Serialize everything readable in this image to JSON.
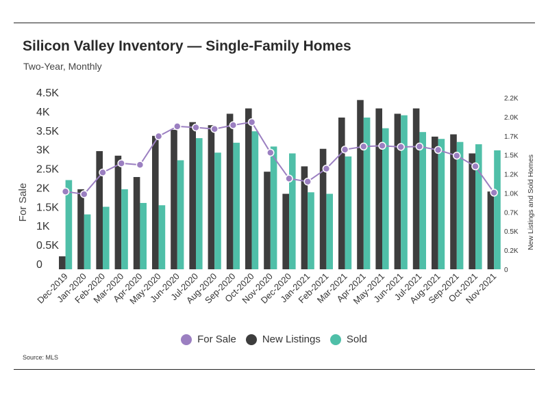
{
  "header": {
    "title": "Silicon Valley Inventory — Single-Family Homes",
    "subtitle": "Two-Year, Monthly"
  },
  "footer": {
    "source": "Source: MLS"
  },
  "colors": {
    "for_sale": "#9b7fc1",
    "new_listings": "#3d3d3d",
    "sold": "#4fbfa8"
  },
  "chart_data": {
    "type": "bar",
    "x": [
      "Dec-2019",
      "Jan-2020",
      "Feb-2020",
      "Mar-2020",
      "Apr-2020",
      "May-2020",
      "Jun-2020",
      "Jul-2020",
      "Aug-2020",
      "Sep-2020",
      "Oct-2020",
      "Nov-2020",
      "Dec-2020",
      "Jan-2021",
      "Feb-2021",
      "Mar-2021",
      "Apr-2021",
      "May-2021",
      "Jun-2021",
      "Jul-2021",
      "Aug-2021",
      "Sep-2021",
      "Oct-2021",
      "Nov-2021"
    ],
    "series": [
      {
        "name": "For Sale",
        "type": "line",
        "axis": "left",
        "values": [
          2040,
          1970,
          2540,
          2780,
          2740,
          3490,
          3750,
          3720,
          3680,
          3780,
          3860,
          3060,
          2380,
          2300,
          2640,
          3140,
          3220,
          3240,
          3210,
          3220,
          3130,
          2980,
          2700,
          2010
        ]
      },
      {
        "name": "New Listings",
        "type": "bar",
        "axis": "right",
        "values": [
          0.17,
          1.05,
          1.55,
          1.49,
          1.21,
          1.75,
          1.83,
          1.93,
          1.89,
          2.04,
          2.11,
          1.28,
          0.99,
          1.35,
          1.58,
          1.99,
          2.22,
          2.11,
          2.04,
          2.11,
          1.74,
          1.77,
          1.52,
          1.02
        ]
      },
      {
        "name": "Sold",
        "type": "bar",
        "axis": "right",
        "values": [
          1.17,
          0.72,
          0.82,
          1.05,
          0.87,
          0.84,
          1.43,
          1.72,
          1.53,
          1.66,
          1.81,
          1.61,
          1.52,
          1.01,
          0.99,
          1.48,
          1.99,
          1.85,
          2.02,
          1.8,
          1.71,
          1.67,
          1.64,
          1.56
        ]
      }
    ],
    "left_axis": {
      "label": "For Sale",
      "ylim": [
        0,
        4500
      ],
      "ticks": [
        "0",
        "0.5K",
        "1K",
        "1.5K",
        "2K",
        "2.5K",
        "3K",
        "3.5K",
        "4K",
        "4.5K"
      ]
    },
    "right_axis": {
      "label": "New Listings and Sold Homes",
      "ylim": [
        0,
        2.25
      ],
      "ticks": [
        "0",
        "0.2K",
        "0.5K",
        "0.7K",
        "1.0K",
        "1.2K",
        "1.5K",
        "1.7K",
        "2.0K",
        "2.2K"
      ]
    },
    "grid": false,
    "legend_position": "bottom-center",
    "legend": [
      "For Sale",
      "New Listings",
      "Sold"
    ]
  }
}
